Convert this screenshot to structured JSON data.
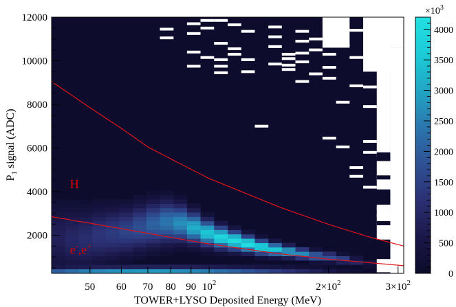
{
  "chart_data": {
    "type": "heatmap",
    "xlabel": "TOWER+LYSO Deposited Energy (MeV)",
    "ylabel": "P",
    "ylabel_sub": "1",
    "ylabel_rest": " signal (ADC)",
    "x_scale": "log",
    "xlim": [
      40,
      310
    ],
    "ylim": [
      250,
      12000
    ],
    "x_ticks": [
      {
        "value": 50,
        "label": "50"
      },
      {
        "value": 60,
        "label": "60"
      },
      {
        "value": 70,
        "label": "70"
      },
      {
        "value": 80,
        "label": "80"
      },
      {
        "value": 90,
        "label": "90"
      },
      {
        "value": 100,
        "label": "10",
        "sup": "2"
      },
      {
        "value": 200,
        "label": "2×10",
        "sup": "2"
      },
      {
        "value": 300,
        "label": "3×10",
        "sup": "2"
      }
    ],
    "y_ticks": [
      {
        "value": 2000,
        "label": "2000"
      },
      {
        "value": 4000,
        "label": "4000"
      },
      {
        "value": 6000,
        "label": "6000"
      },
      {
        "value": 8000,
        "label": "8000"
      },
      {
        "value": 10000,
        "label": "10000"
      },
      {
        "value": 12000,
        "label": "12000"
      }
    ],
    "colorbar": {
      "range": [
        0,
        4200
      ],
      "multiplier": "×10",
      "multiplier_sup": "3",
      "ticks": [
        0,
        500,
        1000,
        1500,
        2000,
        2500,
        3000,
        3500,
        4000
      ],
      "colors": [
        "#0b0b2a",
        "#1a1748",
        "#2b2f72",
        "#2f4f93",
        "#2b76ad",
        "#22a4c4",
        "#1ccad6",
        "#22e0e2"
      ]
    },
    "bins_x_edges": [
      40,
      43.3,
      46.8,
      50.7,
      54.8,
      59.3,
      64.2,
      69.4,
      75.1,
      81.3,
      87.9,
      95.1,
      102.9,
      111.4,
      120.5,
      130.4,
      141.1,
      152.6,
      165.1,
      178.7,
      193.3,
      209.2,
      226.3,
      244.9,
      265.0,
      286.7,
      310
    ],
    "band": {
      "centers": [
        1900,
        1850,
        1850,
        2000,
        2100,
        2200,
        2350,
        2500,
        2600,
        2550,
        2350,
        2100,
        1900,
        1750,
        1600,
        1450,
        1350,
        1250,
        1150,
        1050,
        1000,
        900,
        800,
        700,
        600,
        500
      ],
      "intensity": [
        0.2,
        0.24,
        0.27,
        0.31,
        0.34,
        0.38,
        0.43,
        0.5,
        0.57,
        0.65,
        0.75,
        0.85,
        0.93,
        0.97,
        0.98,
        0.93,
        0.85,
        0.75,
        0.64,
        0.54,
        0.46,
        0.38,
        0.25,
        0.12,
        0.05,
        0.03
      ],
      "halfwidth": [
        1800,
        1700,
        1600,
        1500,
        1400,
        1300,
        1250,
        1200,
        1150,
        1000,
        850,
        700,
        600,
        520,
        450,
        400,
        360,
        320,
        300,
        280,
        260,
        240,
        220,
        200,
        180,
        160
      ]
    },
    "electron_band": {
      "y": 400,
      "intensity": [
        0.55,
        0.62,
        0.68,
        0.72,
        0.75,
        0.77,
        0.78,
        0.78,
        0.77,
        0.75,
        0.72,
        0.68,
        0.63,
        0.58,
        0.52,
        0.46,
        0.4,
        0.34,
        0.28,
        0.22,
        0.16,
        0.1,
        0.06,
        0.03,
        0.02,
        0.01
      ]
    },
    "sparse_points": [
      [
        80.5,
        11450
      ],
      [
        80.5,
        11050
      ],
      [
        90.5,
        11700
      ],
      [
        90.5,
        11250
      ],
      [
        90.5,
        10400
      ],
      [
        90.5,
        9750
      ],
      [
        98.5,
        11850
      ],
      [
        98.5,
        11500
      ],
      [
        98.5,
        10150
      ],
      [
        108,
        11850
      ],
      [
        108,
        10800
      ],
      [
        108,
        10050
      ],
      [
        108,
        9750
      ],
      [
        108,
        9450
      ],
      [
        118,
        11650
      ],
      [
        118,
        10550
      ],
      [
        118,
        10300
      ],
      [
        130,
        11350
      ],
      [
        130,
        10050
      ],
      [
        130,
        9500
      ],
      [
        140,
        7000
      ],
      [
        146,
        11550
      ],
      [
        146,
        11100
      ],
      [
        146,
        10650
      ],
      [
        146,
        9850
      ],
      [
        158,
        9800
      ],
      [
        158,
        10300
      ],
      [
        158,
        10100
      ],
      [
        158,
        9600
      ],
      [
        170,
        11350
      ],
      [
        170,
        10900
      ],
      [
        170,
        10350
      ],
      [
        170,
        9950
      ],
      [
        170,
        9050
      ],
      [
        182,
        11000
      ],
      [
        182,
        10500
      ],
      [
        182,
        9400
      ],
      [
        195,
        11800
      ],
      [
        195,
        9200
      ],
      [
        195,
        6450
      ],
      [
        208,
        11000
      ],
      [
        208,
        10300
      ],
      [
        208,
        9700
      ],
      [
        222,
        11450
      ],
      [
        222,
        10700
      ],
      [
        222,
        8100
      ],
      [
        222,
        6050
      ],
      [
        236,
        11400
      ],
      [
        236,
        10150
      ],
      [
        236,
        8850
      ],
      [
        236,
        5100
      ],
      [
        236,
        4700
      ],
      [
        250,
        11450
      ],
      [
        250,
        8800
      ],
      [
        250,
        7900
      ],
      [
        250,
        6300
      ],
      [
        250,
        5800
      ],
      [
        250,
        4200
      ],
      [
        265,
        5650
      ],
      [
        265,
        3200
      ],
      [
        265,
        2900
      ],
      [
        265,
        850
      ]
    ],
    "white_regions": [
      {
        "x0": 193.3,
        "x1": 226.3,
        "y0": 10600,
        "y1": 12000
      },
      {
        "x0": 244.9,
        "x1": 286.7,
        "y0": 9500,
        "y1": 12000
      },
      {
        "x0": 265.0,
        "x1": 286.7,
        "y0": 5800,
        "y1": 12000
      },
      {
        "x0": 286.7,
        "x1": 310,
        "y0": 250,
        "y1": 10600
      },
      {
        "x0": 286.7,
        "x1": 310,
        "y0": 10600,
        "y1": 12000
      },
      {
        "x0": 265.0,
        "x1": 286.7,
        "y0": 4100,
        "y1": 5400
      },
      {
        "x0": 265.0,
        "x1": 286.7,
        "y0": 1800,
        "y1": 3400
      },
      {
        "x0": 265.0,
        "x1": 286.7,
        "y0": 300,
        "y1": 800
      }
    ],
    "curves": [
      {
        "name": "H-lower",
        "points": [
          [
            40,
            2850
          ],
          [
            60,
            2300
          ],
          [
            80,
            1900
          ],
          [
            100,
            1600
          ],
          [
            150,
            1150
          ],
          [
            200,
            900
          ],
          [
            250,
            750
          ],
          [
            310,
            600
          ]
        ]
      },
      {
        "name": "H-upper",
        "points": [
          [
            40,
            9050
          ],
          [
            50,
            7850
          ],
          [
            60,
            6900
          ],
          [
            70,
            6050
          ],
          [
            80,
            5500
          ],
          [
            100,
            4600
          ],
          [
            150,
            3300
          ],
          [
            200,
            2500
          ],
          [
            250,
            1950
          ],
          [
            310,
            1500
          ]
        ]
      }
    ],
    "annotations": [
      {
        "text": "H",
        "x": 44.5,
        "y": 4150,
        "color": "#dd0000"
      },
      {
        "text": "e",
        "sup1": "-",
        "mid": ",e",
        "sup2": "+",
        "x": 44.5,
        "y": 1150,
        "color": "#dd0000"
      }
    ]
  }
}
